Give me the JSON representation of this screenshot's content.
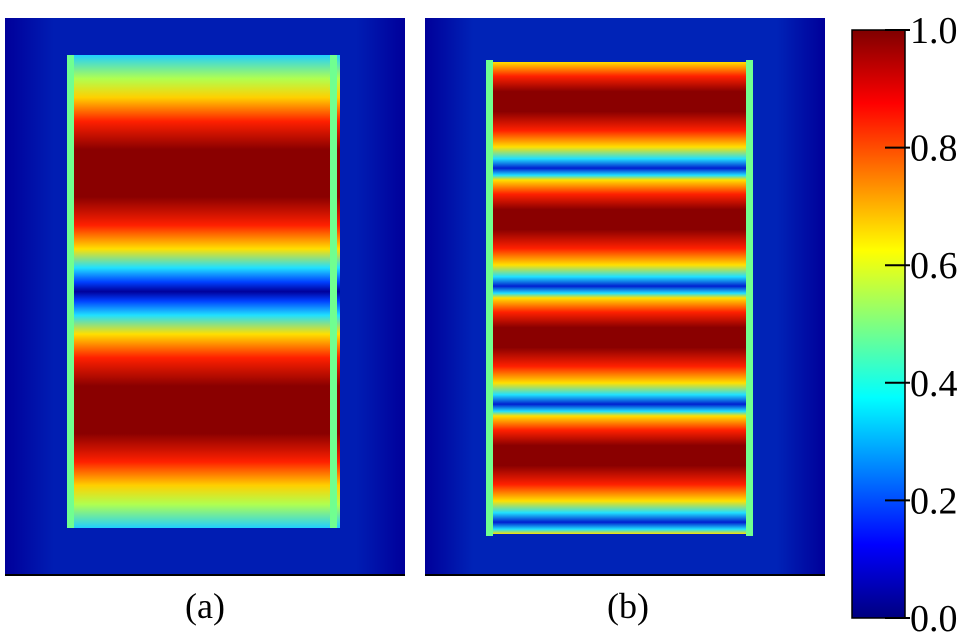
{
  "chart_data": {
    "type": "heatmap",
    "panels": [
      {
        "label": "(a)"
      },
      {
        "label": "(b)"
      }
    ],
    "colorbar": {
      "lim": [
        0,
        1
      ],
      "ticks": [
        {
          "value": 0,
          "label": "0.0"
        },
        {
          "value": 0.2,
          "label": "0.2"
        },
        {
          "value": 0.4,
          "label": "0.4"
        },
        {
          "value": 0.6,
          "label": "0.6"
        },
        {
          "value": 0.8,
          "label": "0.8"
        },
        {
          "value": 1,
          "label": "1.0"
        }
      ]
    }
  }
}
